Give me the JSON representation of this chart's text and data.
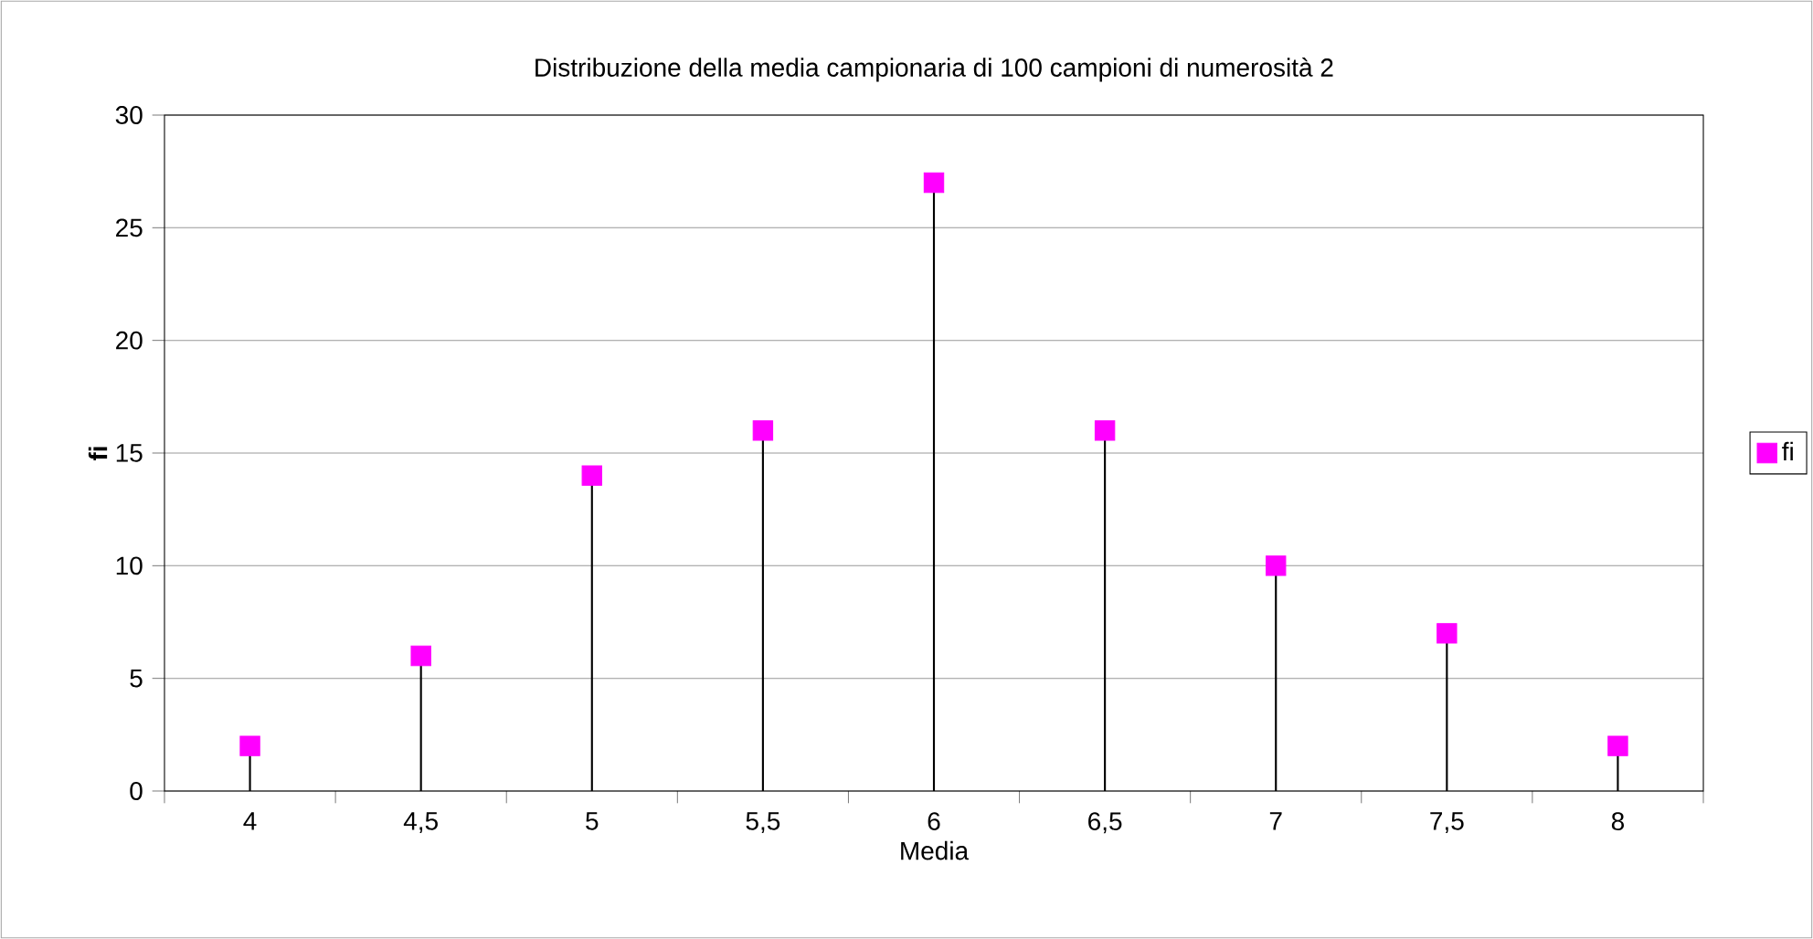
{
  "chart_data": {
    "type": "lollipop",
    "title": "Distribuzione della media campionaria di 100 campioni di numerosità 2",
    "xlabel": "Media",
    "ylabel": "fi",
    "categories": [
      "4",
      "4,5",
      "5",
      "5,5",
      "6",
      "6,5",
      "7",
      "7,5",
      "8"
    ],
    "series": [
      {
        "name": "fi",
        "color": "#ff00ff",
        "values": [
          2,
          6,
          14,
          16,
          27,
          16,
          10,
          7,
          2
        ]
      }
    ],
    "ylim": [
      0,
      30
    ],
    "yticks": [
      0,
      5,
      10,
      15,
      20,
      25,
      30
    ],
    "grid": "y",
    "legend": "right",
    "marker": "square"
  }
}
